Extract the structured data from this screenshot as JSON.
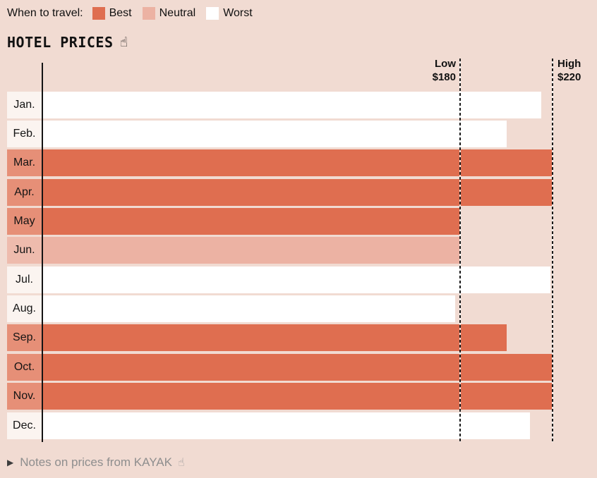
{
  "legend": {
    "title": "When to travel:",
    "items": [
      {
        "label": "Best",
        "category": "best"
      },
      {
        "label": "Neutral",
        "category": "neutral"
      },
      {
        "label": "Worst",
        "category": "worst"
      }
    ]
  },
  "header": {
    "title": "HOTEL PRICES",
    "tap_icon": "☝"
  },
  "refs": {
    "low_label": "Low",
    "low_value": "$180",
    "high_label": "High",
    "high_value": "$220"
  },
  "footer": {
    "expand_icon": "▶",
    "notes_label": "Notes on prices from KAYAK",
    "tap_icon": "☝"
  },
  "colors": {
    "background": "#f1dbd2",
    "best": "#df6e50",
    "best_cell": "#e68f77",
    "neutral": "#ecb2a3",
    "neutral_cell": "#eebbad",
    "worst": "#ffffff",
    "worst_cell": "#fbf4f0",
    "text": "#111111",
    "notes_text": "#8e8e8e"
  },
  "chart_data": {
    "type": "bar",
    "orientation": "horizontal",
    "title": "HOTEL PRICES",
    "categories": [
      "Jan.",
      "Feb.",
      "Mar.",
      "Apr.",
      "May",
      "Jun.",
      "Jul.",
      "Aug.",
      "Sep.",
      "Oct.",
      "Nov.",
      "Dec."
    ],
    "values": [
      215,
      200,
      220,
      220,
      180,
      180,
      219,
      178,
      200,
      220,
      220,
      210
    ],
    "ratings": [
      "worst",
      "worst",
      "best",
      "best",
      "best",
      "neutral",
      "worst",
      "worst",
      "best",
      "best",
      "best",
      "worst"
    ],
    "xlim": [
      0,
      220
    ],
    "grid": false,
    "legend_position": "top",
    "legend_entries": [
      "Best",
      "Neutral",
      "Worst"
    ],
    "reference_lines": [
      {
        "label": "Low",
        "value": 180,
        "value_label": "$180"
      },
      {
        "label": "High",
        "value": 220,
        "value_label": "$220"
      }
    ]
  }
}
